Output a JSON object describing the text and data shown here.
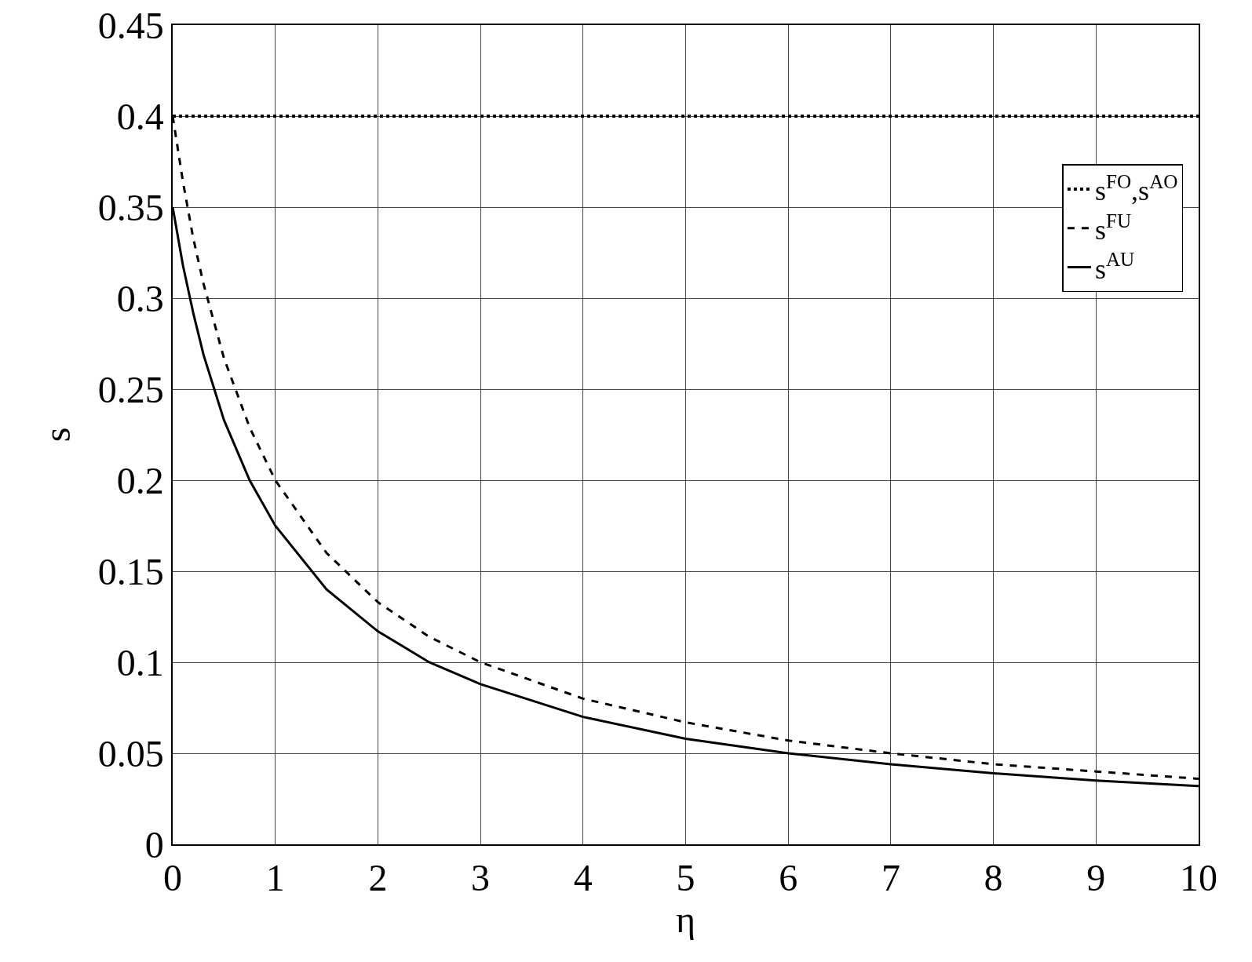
{
  "chart_data": {
    "type": "line",
    "xlabel": "η",
    "ylabel": "s",
    "xlim": [
      0,
      10
    ],
    "xticks": [
      0,
      1,
      2,
      3,
      4,
      5,
      6,
      7,
      8,
      9,
      10
    ],
    "ylim": [
      0,
      0.45
    ],
    "yticks": [
      0,
      0.05,
      0.1,
      0.15,
      0.2,
      0.25,
      0.3,
      0.35,
      0.4,
      0.45
    ],
    "grid": true,
    "legend": "top right",
    "marker": "none",
    "series": [
      {
        "name": "s$^{FO}$,s$^{AO}$",
        "color": "#000000",
        "line_style": "dotted",
        "x": [
          0,
          10
        ],
        "values": [
          0.4,
          0.4
        ]
      },
      {
        "name": "s$^{FU}$",
        "color": "#000000",
        "line_style": "dashed",
        "x": [
          0,
          0.1,
          0.2,
          0.3,
          0.5,
          0.75,
          1,
          1.5,
          2,
          2.5,
          3,
          4,
          5,
          6,
          7,
          8,
          9,
          10
        ],
        "values": [
          0.4,
          0.364,
          0.333,
          0.308,
          0.267,
          0.229,
          0.2,
          0.16,
          0.133,
          0.114,
          0.1,
          0.08,
          0.067,
          0.057,
          0.05,
          0.044,
          0.04,
          0.036
        ]
      },
      {
        "name": "s$^{AU}$",
        "color": "#000000",
        "line_style": "solid",
        "x": [
          0,
          0.1,
          0.2,
          0.3,
          0.5,
          0.75,
          1,
          1.5,
          2,
          2.5,
          3,
          4,
          5,
          6,
          7,
          8,
          9,
          10
        ],
        "values": [
          0.35,
          0.318,
          0.292,
          0.269,
          0.233,
          0.2,
          0.175,
          0.14,
          0.117,
          0.1,
          0.088,
          0.07,
          0.058,
          0.05,
          0.044,
          0.039,
          0.035,
          0.032
        ]
      }
    ]
  }
}
